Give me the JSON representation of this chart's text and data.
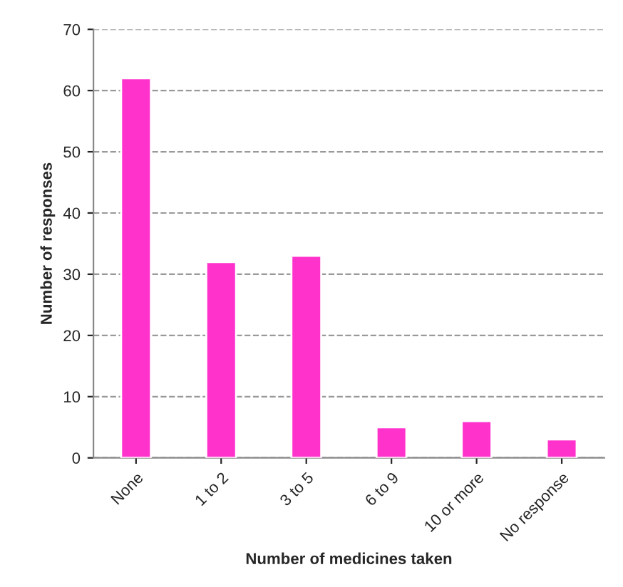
{
  "chart_data": {
    "type": "bar",
    "xlabel": "Number of medicines taken",
    "ylabel": "Number of responses",
    "categories": [
      "None",
      "1 to 2",
      "3 to 5",
      "6 to 9",
      "10 or more",
      "No response"
    ],
    "values": [
      62,
      32,
      33,
      5,
      6,
      3
    ],
    "color": "#ff33cc",
    "ylim": [
      0,
      70
    ],
    "yticks": [
      0,
      10,
      20,
      30,
      40,
      50,
      60,
      70
    ],
    "grid": "y"
  }
}
